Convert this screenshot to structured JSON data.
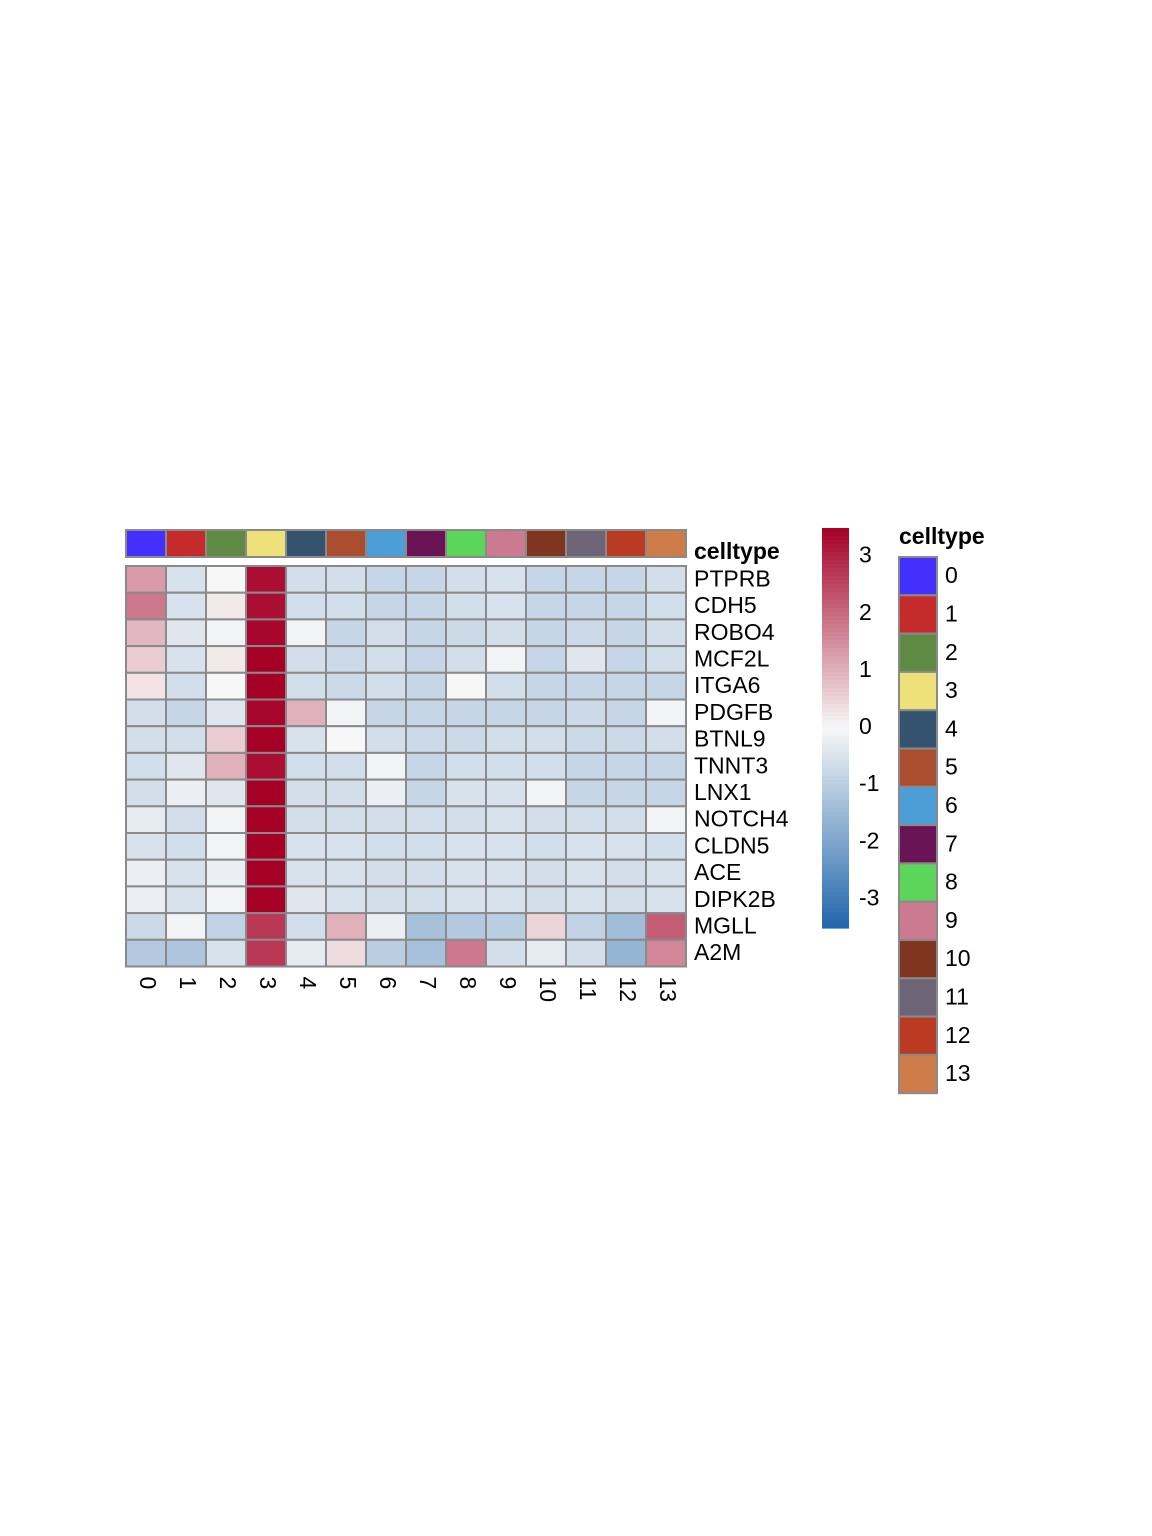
{
  "chart_data": {
    "type": "heatmap",
    "annotation_label": "celltype",
    "legend_title": "celltype",
    "columns": [
      "0",
      "1",
      "2",
      "3",
      "4",
      "5",
      "6",
      "7",
      "8",
      "9",
      "10",
      "11",
      "12",
      "13"
    ],
    "rows": [
      "PTPRB",
      "CDH5",
      "ROBO4",
      "MCF2L",
      "ITGA6",
      "PDGFB",
      "BTNL9",
      "TNNT3",
      "LNX1",
      "NOTCH4",
      "CLDN5",
      "ACE",
      "DIPK2B",
      "MGLL",
      "A2M"
    ],
    "values": [
      [
        1.3,
        -0.5,
        0.0,
        3.3,
        -0.6,
        -0.6,
        -0.8,
        -0.8,
        -0.6,
        -0.5,
        -0.8,
        -0.8,
        -0.8,
        -0.6
      ],
      [
        1.8,
        -0.5,
        0.2,
        3.3,
        -0.6,
        -0.6,
        -0.8,
        -0.8,
        -0.6,
        -0.5,
        -0.8,
        -0.8,
        -0.8,
        -0.6
      ],
      [
        0.9,
        -0.4,
        -0.1,
        3.4,
        -0.1,
        -0.8,
        -0.6,
        -0.8,
        -0.7,
        -0.6,
        -0.8,
        -0.7,
        -0.8,
        -0.6
      ],
      [
        0.6,
        -0.5,
        0.2,
        3.5,
        -0.6,
        -0.7,
        -0.6,
        -0.8,
        -0.6,
        -0.1,
        -0.8,
        -0.4,
        -0.8,
        -0.6
      ],
      [
        0.3,
        -0.6,
        0.0,
        3.5,
        -0.6,
        -0.7,
        -0.6,
        -0.8,
        0.0,
        -0.6,
        -0.8,
        -0.8,
        -0.8,
        -0.8
      ],
      [
        -0.6,
        -0.8,
        -0.4,
        3.4,
        1.0,
        -0.1,
        -0.8,
        -0.8,
        -0.8,
        -0.8,
        -0.8,
        -0.7,
        -0.8,
        -0.1
      ],
      [
        -0.6,
        -0.6,
        0.6,
        3.5,
        -0.5,
        0.0,
        -0.6,
        -0.7,
        -0.7,
        -0.6,
        -0.6,
        -0.7,
        -0.7,
        -0.6
      ],
      [
        -0.6,
        -0.4,
        1.0,
        3.3,
        -0.6,
        -0.6,
        -0.1,
        -0.8,
        -0.6,
        -0.6,
        -0.6,
        -0.8,
        -0.8,
        -0.8
      ],
      [
        -0.6,
        -0.2,
        -0.4,
        3.5,
        -0.6,
        -0.6,
        -0.2,
        -0.8,
        -0.5,
        -0.5,
        -0.1,
        -0.8,
        -0.8,
        -0.8
      ],
      [
        -0.3,
        -0.6,
        -0.1,
        3.5,
        -0.6,
        -0.6,
        -0.6,
        -0.6,
        -0.6,
        -0.5,
        -0.6,
        -0.6,
        -0.6,
        -0.1
      ],
      [
        -0.5,
        -0.6,
        -0.1,
        3.5,
        -0.5,
        -0.5,
        -0.6,
        -0.6,
        -0.5,
        -0.5,
        -0.6,
        -0.5,
        -0.5,
        -0.6
      ],
      [
        -0.2,
        -0.5,
        -0.2,
        3.5,
        -0.5,
        -0.5,
        -0.6,
        -0.6,
        -0.5,
        -0.5,
        -0.6,
        -0.5,
        -0.6,
        -0.5
      ],
      [
        -0.2,
        -0.5,
        -0.1,
        3.5,
        -0.4,
        -0.5,
        -0.6,
        -0.6,
        -0.5,
        -0.5,
        -0.6,
        -0.5,
        -0.6,
        -0.5
      ],
      [
        -0.7,
        -0.1,
        -0.9,
        2.7,
        -0.6,
        1.0,
        -0.2,
        -1.3,
        -1.1,
        -1.0,
        0.5,
        -0.9,
        -1.4,
        2.2
      ],
      [
        -1.1,
        -1.2,
        -0.5,
        2.7,
        -0.3,
        0.4,
        -1.0,
        -1.3,
        1.8,
        -0.6,
        -0.3,
        -0.6,
        -1.6,
        1.6
      ]
    ],
    "color_scale": {
      "min": -3.5,
      "max": 3.5,
      "ticks": [
        3,
        2,
        1,
        0,
        -1,
        -2,
        -3
      ],
      "low_color": "#2166ac",
      "mid_color": "#f7f7f7",
      "high_color": "#a50026"
    },
    "celltype_colors": [
      "#4330ff",
      "#c52b2b",
      "#5f8a44",
      "#efe17a",
      "#33536f",
      "#ab4e30",
      "#4c9fd6",
      "#6a1455",
      "#5bd65a",
      "#cb7a91",
      "#7f351e",
      "#6e6478",
      "#bb3b22",
      "#cd7c4a"
    ],
    "grid_color": "#8a8a8a"
  }
}
